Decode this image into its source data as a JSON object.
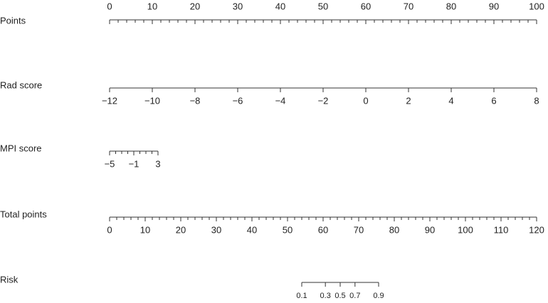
{
  "chart_data": {
    "type": "nomogram",
    "axes": [
      {
        "label": "Points",
        "scale": "linear",
        "lim": [
          0,
          100
        ],
        "span": [
          0,
          100
        ],
        "ticks": [
          0,
          10,
          20,
          30,
          40,
          50,
          60,
          70,
          80,
          90,
          100
        ],
        "minor_ticks": [
          2,
          4,
          6,
          8,
          12,
          14,
          16,
          18,
          22,
          24,
          26,
          28,
          32,
          34,
          36,
          38,
          42,
          44,
          46,
          48,
          52,
          54,
          56,
          58,
          62,
          64,
          66,
          68,
          72,
          74,
          76,
          78,
          82,
          84,
          86,
          88,
          92,
          94,
          96,
          98
        ]
      },
      {
        "label": "Rad score",
        "scale": "linear",
        "lim": [
          -12,
          8
        ],
        "span": [
          0,
          100
        ],
        "ticks": [
          {
            "value": -12,
            "label": "−12"
          },
          {
            "value": -10,
            "label": "−10"
          },
          {
            "value": -8,
            "label": "−8"
          },
          {
            "value": -6,
            "label": "−6"
          },
          {
            "value": -4,
            "label": "−4"
          },
          {
            "value": -2,
            "label": "−2"
          },
          0,
          2,
          4,
          6,
          8
        ],
        "minor_ticks": []
      },
      {
        "label": "MPI score",
        "scale": "linear",
        "lim": [
          -5,
          3
        ],
        "span": [
          0,
          11.33
        ],
        "ticks": [
          {
            "value": -5,
            "label": "−5"
          },
          {
            "value": -1,
            "label": "−1"
          },
          3
        ],
        "minor_ticks": [
          -4,
          -3,
          -2,
          0,
          1,
          2
        ]
      },
      {
        "label": "Total points",
        "scale": "linear",
        "lim": [
          0,
          120
        ],
        "span": [
          0,
          100
        ],
        "ticks": [
          0,
          10,
          20,
          30,
          40,
          50,
          60,
          70,
          80,
          90,
          100,
          110,
          120
        ],
        "minor_ticks": [
          2,
          4,
          6,
          8,
          12,
          14,
          16,
          18,
          22,
          24,
          26,
          28,
          32,
          34,
          36,
          38,
          42,
          44,
          46,
          48,
          52,
          54,
          56,
          58,
          62,
          64,
          66,
          68,
          72,
          74,
          76,
          78,
          82,
          84,
          86,
          88,
          92,
          94,
          96,
          98,
          102,
          104,
          106,
          108,
          112,
          114,
          116,
          118
        ]
      },
      {
        "label": "Risk",
        "scale": "logit",
        "lim": [
          0.1,
          0.9
        ],
        "span": [
          45,
          63
        ],
        "ticks": [
          0.1,
          0.3,
          0.5,
          0.7,
          0.9
        ],
        "minor_ticks": []
      }
    ]
  }
}
